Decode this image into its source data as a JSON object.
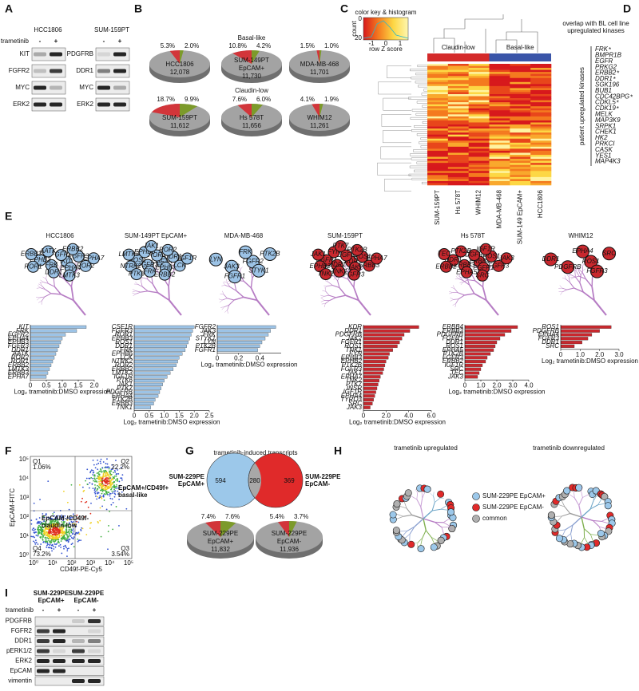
{
  "panel_labels": [
    "A",
    "B",
    "C",
    "D",
    "E",
    "F",
    "G",
    "H",
    "I"
  ],
  "panel_a": {
    "treatment_label": "trametinib",
    "cells": [
      {
        "name": "HCC1806",
        "color": "#2c4fa8",
        "signs": [
          "-",
          "+"
        ],
        "proteins": [
          "KIT",
          "FGFR2",
          "MYC",
          "ERK2"
        ]
      },
      {
        "name": "SUM-159PT",
        "color": "#d42a2a",
        "signs": [
          "-",
          "+"
        ],
        "proteins": [
          "PDGFRB",
          "DDR1",
          "MYC",
          "ERK2"
        ]
      }
    ]
  },
  "panel_b": {
    "groups": [
      {
        "name": "Basal-like",
        "color": "#2c4fa8"
      },
      {
        "name": "Claudin-low",
        "color": "#d42a2a"
      }
    ],
    "pies": [
      {
        "name_lines": [
          "HCC1806"
        ],
        "total": "12,078",
        "slices": [
          {
            "value": 5.3,
            "label": "5.3%",
            "color": "#d2353a"
          },
          {
            "value": 2.0,
            "label": "2.0%",
            "color": "#7c9a2a"
          }
        ]
      },
      {
        "name_lines": [
          "SUM-149PT",
          "EpCAM+"
        ],
        "total": "11,730",
        "slices": [
          {
            "value": 10.8,
            "label": "10.8%",
            "color": "#d2353a"
          },
          {
            "value": 4.2,
            "label": "4.2%",
            "color": "#7c9a2a"
          }
        ]
      },
      {
        "name_lines": [
          "MDA-MB-468"
        ],
        "total": "11,701",
        "slices": [
          {
            "value": 1.5,
            "label": "1.5%",
            "color": "#d2353a"
          },
          {
            "value": 1.0,
            "label": "1.0%",
            "color": "#7c9a2a"
          }
        ]
      },
      {
        "name_lines": [
          "SUM-159PT"
        ],
        "total": "11,612",
        "slices": [
          {
            "value": 18.7,
            "label": "18.7%",
            "color": "#d2353a"
          },
          {
            "value": 9.9,
            "label": "9.9%",
            "color": "#7c9a2a"
          }
        ]
      },
      {
        "name_lines": [
          "Hs 578T"
        ],
        "total": "11,656",
        "slices": [
          {
            "value": 7.6,
            "label": "7.6%",
            "color": "#d2353a"
          },
          {
            "value": 6.0,
            "label": "6.0%",
            "color": "#7c9a2a"
          }
        ]
      },
      {
        "name_lines": [
          "WHIM12"
        ],
        "total": "11,261",
        "slices": [
          {
            "value": 4.1,
            "label": "4.1%",
            "color": "#d2353a"
          },
          {
            "value": 1.9,
            "label": "1.9%",
            "color": "#7c9a2a"
          }
        ]
      }
    ]
  },
  "panel_c": {
    "key_title": "color key & histogram",
    "key_y_label": "count",
    "key_x_label": "row Z score",
    "key_xticks": [
      "-1",
      "0",
      "1"
    ],
    "key_yticks": [
      "0",
      "20"
    ],
    "groups": [
      {
        "name": "Claudin-low",
        "color": "#d42a2a"
      },
      {
        "name": "Basal-like",
        "color": "#3a55a8"
      }
    ],
    "columns": [
      "SUM-159PT",
      "Hs 578T",
      "WHIM12",
      "MDA-MB-468",
      "SUM-149 EpCAM+",
      "HCC1806"
    ]
  },
  "panel_d": {
    "title_lines": [
      "overlap with BL cell line",
      "upregulated kinases"
    ],
    "title_color": "#c23bbf",
    "axis_label": "patient upregulated kinases",
    "mark": "*",
    "kinases": [
      {
        "name": "FRK",
        "overlap": true
      },
      {
        "name": "BMPR1B",
        "overlap": false
      },
      {
        "name": "EGFR",
        "overlap": false
      },
      {
        "name": "PRKG2",
        "overlap": false
      },
      {
        "name": "ERBB2",
        "overlap": true
      },
      {
        "name": "DDR1",
        "overlap": true
      },
      {
        "name": "SGK196",
        "overlap": false
      },
      {
        "name": "BUB1",
        "overlap": false
      },
      {
        "name": "CDC42BPG",
        "overlap": true
      },
      {
        "name": "CDKL5",
        "overlap": true
      },
      {
        "name": "CDK19",
        "overlap": true
      },
      {
        "name": "MELK",
        "overlap": false
      },
      {
        "name": "MAP3K9",
        "overlap": false
      },
      {
        "name": "SRPK1",
        "overlap": false
      },
      {
        "name": "CHEK1",
        "overlap": false
      },
      {
        "name": "HK2",
        "overlap": false
      },
      {
        "name": "PRKCI",
        "overlap": false
      },
      {
        "name": "CASK",
        "overlap": false
      },
      {
        "name": "YES1",
        "overlap": false
      },
      {
        "name": "MAP4K3",
        "overlap": false
      }
    ]
  },
  "panel_e": {
    "axis_label": "Log₂ trametinib:DMSO expression",
    "charts": [
      {
        "title": "HCC1806",
        "color": "#9cc3e6",
        "genes": [
          "KIT",
          "FRK",
          "FGFR2",
          "EPHA4",
          "EPHB3",
          "FGFR3",
          "DDR1",
          "AATK",
          "ROR2",
          "ROR1",
          "ERBB2",
          "LMTK3",
          "ERBB3",
          "EPHA7"
        ],
        "values": [
          1.75,
          1.45,
          1.1,
          1.0,
          0.95,
          0.9,
          0.85,
          0.8,
          0.75,
          0.7,
          0.65,
          0.6,
          0.55,
          0.5
        ],
        "xlim": [
          0,
          2.0
        ],
        "xticks": [
          0,
          0.5,
          {
            "value": 1,
            "label": "1.0"
          },
          1.5,
          {
            "value": 2,
            "label": "2.0"
          }
        ]
      },
      {
        "title": "SUM-149PT EpCAM+",
        "color": "#9cc3e6",
        "genes": [
          "CSF1R",
          "FGFR3",
          "ROR1",
          "EPHB3",
          "ROS1",
          "DDR1",
          "FRK",
          "EPHB6",
          "LCK",
          "NTRK2",
          "ROR2",
          "ERBB2",
          "LMTK3",
          "IGF1R",
          "PTK6",
          "JAK1",
          "PTK7",
          "PDGFRB",
          "EPHA4",
          "PTK2B",
          "ERBB3",
          "TNK1"
        ],
        "values": [
          2.0,
          1.95,
          1.9,
          1.85,
          1.8,
          1.75,
          1.7,
          1.6,
          1.5,
          1.45,
          1.4,
          1.3,
          1.2,
          1.1,
          1.0,
          0.95,
          0.9,
          0.85,
          0.8,
          0.7,
          0.65,
          0.55
        ],
        "xlim": [
          0,
          2.5
        ],
        "xticks": [
          0,
          0.5,
          {
            "value": 1,
            "label": "1.0"
          },
          1.5,
          {
            "value": 2,
            "label": "2.0"
          },
          2.5
        ]
      },
      {
        "title": "MDA-MB-468",
        "color": "#9cc3e6",
        "genes": [
          "FGFR2",
          "JAK3",
          "FRK",
          "STYK1",
          "LYN",
          "PTK2B",
          "FGFR1"
        ],
        "values": [
          0.55,
          0.5,
          0.48,
          0.45,
          0.42,
          0.4,
          0.38
        ],
        "xlim": [
          0,
          0.6
        ],
        "xticks": [
          0,
          0.2,
          0.4
        ]
      },
      {
        "title": "SUM-159PT",
        "color": "#c8282e",
        "genes": [
          "KDR",
          "DDR1",
          "PDGFRB",
          "JAK2",
          "FGFR1",
          "ROS1",
          "TNK1",
          "FYN",
          "ERBB3",
          "EPHB2",
          "PTK2B",
          "FGFR3",
          "JAK1",
          "EPHA7",
          "TNK2",
          "PTK7",
          "INSR",
          "IGF1R",
          "EPHA4",
          "TYRO3",
          "SRC",
          "JAK3"
        ],
        "values": [
          4.9,
          4.1,
          3.6,
          3.4,
          3.2,
          3.0,
          2.6,
          2.3,
          2.2,
          2.0,
          1.9,
          1.8,
          1.7,
          1.5,
          1.4,
          1.3,
          1.2,
          1.1,
          1.0,
          0.9,
          0.8,
          0.6
        ],
        "xlim": [
          0,
          6.0
        ],
        "xticks": [
          0,
          {
            "value": 2,
            "label": "2.0"
          },
          {
            "value": 4,
            "label": "4.0"
          },
          {
            "value": 6,
            "label": "6.0"
          }
        ]
      },
      {
        "title": "Hs 578T",
        "color": "#c8282e",
        "genes": [
          "ERBB4",
          "ERBB3",
          "PDGFRB",
          "FGFR1",
          "DDR1",
          "ROS1",
          "EPHA5",
          "PTK2B",
          "FGFR3",
          "ERBB2",
          "IGF1R",
          "SRC",
          "TEC",
          "JAK3"
        ],
        "values": [
          3.3,
          2.9,
          2.5,
          2.2,
          2.0,
          1.9,
          1.8,
          1.6,
          1.4,
          1.3,
          1.1,
          1.0,
          0.9,
          0.8
        ],
        "xlim": [
          0,
          4.0
        ],
        "xticks": [
          0,
          {
            "value": 1,
            "label": "1.0"
          },
          {
            "value": 2,
            "label": "2.0"
          },
          {
            "value": 3,
            "label": "3.0"
          },
          {
            "value": 4,
            "label": "4.0"
          }
        ]
      },
      {
        "title": "WHIM12",
        "color": "#c8282e",
        "genes": [
          "ROS1",
          "PDGFRB",
          "EPHA4",
          "FGFR3",
          "DDR1",
          "SRC"
        ],
        "values": [
          2.6,
          2.0,
          1.6,
          1.4,
          1.1,
          0.7
        ],
        "xlim": [
          0,
          3.0
        ],
        "xticks": [
          0,
          {
            "value": 1,
            "label": "1.0"
          },
          {
            "value": 2,
            "label": "2.0"
          },
          {
            "value": 3,
            "label": "3.0"
          }
        ]
      }
    ]
  },
  "panel_f": {
    "x_label": "CD49f-PE-Cy5",
    "y_label": "EpCAM-FITC",
    "ticks": [
      "10⁰",
      "10¹",
      "10²",
      "10³",
      "10⁴",
      "10⁵"
    ],
    "quadrants": [
      {
        "name": "Q1",
        "value": "1.06%"
      },
      {
        "name": "Q2",
        "value": "22.2%"
      },
      {
        "name": "Q4",
        "value": "73.2%"
      },
      {
        "name": "Q3",
        "value": "3.54%"
      }
    ],
    "populations": [
      {
        "lines": [
          "EpCAM+/CD49f+",
          "basal-like"
        ],
        "color": "#3b7fc9"
      },
      {
        "lines": [
          "EpCAM-/CD49f-",
          "claudin-low"
        ],
        "color": "#d42a2a"
      }
    ]
  },
  "panel_g": {
    "title": "trametinib-induced transcripts",
    "sets": [
      {
        "name_lines": [
          "SUM-229PE",
          "EpCAM+"
        ],
        "color": "#9cc8ea",
        "text_color": "#3b7fc9",
        "count": "594"
      },
      {
        "name_lines": [
          "SUM-229PE",
          "EpCAM-"
        ],
        "color": "#e02a2a",
        "text_color": "#d42a2a",
        "count": "369"
      }
    ],
    "overlap": "280",
    "pies": [
      {
        "name_lines": [
          "SUM-229PE",
          "EpCAM+"
        ],
        "total": "11,832",
        "slices": [
          {
            "value": 7.4,
            "label": "7.4%",
            "color": "#d2353a"
          },
          {
            "value": 7.6,
            "label": "7.6%",
            "color": "#7c9a2a"
          }
        ]
      },
      {
        "name_lines": [
          "SUM-229PE",
          "EpCAM-"
        ],
        "total": "11,936",
        "slices": [
          {
            "value": 5.4,
            "label": "5.4%",
            "color": "#d2353a"
          },
          {
            "value": 3.7,
            "label": "3.7%",
            "color": "#7c9a2a"
          }
        ]
      }
    ]
  },
  "panel_h": {
    "titles": [
      "trametinib upregulated",
      "trametinib downregulated"
    ],
    "legend": [
      {
        "name": "SUM-229PE EpCAM+",
        "color": "#9cc8ea"
      },
      {
        "name": "SUM-229PE EpCAM-",
        "color": "#e02a2a"
      },
      {
        "name": "common",
        "color": "#b0b0b0"
      }
    ]
  },
  "panel_i": {
    "treatment_label": "trametinib",
    "cells": [
      {
        "name_lines": [
          "SUM-229PE",
          "EpCAM+"
        ],
        "color": "#3b7fc9",
        "signs": [
          "-",
          "+"
        ]
      },
      {
        "name_lines": [
          "SUM-229PE",
          "EpCAM-"
        ],
        "color": "#d42a2a",
        "signs": [
          "-",
          "+"
        ]
      }
    ],
    "proteins": [
      "PDGFRB",
      "FGFR2",
      "DDR1",
      "pERK1/2",
      "ERK2",
      "EpCAM",
      "vimentin"
    ]
  }
}
